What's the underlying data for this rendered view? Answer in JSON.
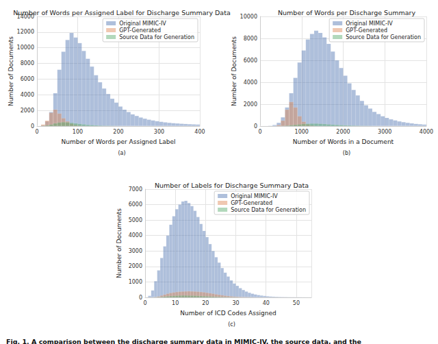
{
  "caption": "Fig. 1. A comparison between the discharge summary data in MIMIC-IV, the source data, and the",
  "chart_data": [
    {
      "type": "histogram",
      "title": "Number of Words per Assigned Label for Discharge Summary Data",
      "x_label": "Number of Words per Assigned Label",
      "y_label": "Number of Documents",
      "annotation": "(a)",
      "bins": [
        0,
        10,
        20,
        30,
        40,
        50,
        60,
        70,
        80,
        90,
        100,
        110,
        120,
        130,
        140,
        150,
        160,
        170,
        180,
        190,
        200,
        210,
        220,
        230,
        240,
        250,
        260,
        270,
        280,
        290,
        300,
        310,
        320,
        330,
        340,
        350,
        360,
        370,
        380,
        390,
        400
      ],
      "series": [
        {
          "name": "Original MIMIC-IV",
          "color": "#4c72b0",
          "values": [
            0,
            100,
            600,
            1800,
            4200,
            7200,
            9500,
            11000,
            11900,
            11300,
            10600,
            9600,
            8600,
            7600,
            6500,
            5600,
            4800,
            4100,
            3500,
            3000,
            2500,
            2100,
            1800,
            1500,
            1300,
            1100,
            950,
            820,
            720,
            630,
            550,
            480,
            420,
            380,
            340,
            300,
            270,
            240,
            220,
            200
          ]
        },
        {
          "name": "GPT-Generated",
          "color": "#dd8452",
          "values": [
            0,
            200,
            700,
            1700,
            2100,
            1600,
            1000,
            600,
            300,
            150,
            60,
            20,
            0,
            0,
            0,
            0,
            0,
            0,
            0,
            0,
            0,
            0,
            0,
            0,
            0,
            0,
            0,
            0,
            0,
            0,
            0,
            0,
            0,
            0,
            0,
            0,
            0,
            0,
            0,
            0
          ]
        },
        {
          "name": "Source Data for Generation",
          "color": "#55a868",
          "values": [
            0,
            20,
            80,
            200,
            350,
            450,
            500,
            480,
            420,
            350,
            280,
            220,
            160,
            120,
            90,
            60,
            40,
            30,
            20,
            10,
            0,
            0,
            0,
            0,
            0,
            0,
            0,
            0,
            0,
            0,
            0,
            0,
            0,
            0,
            0,
            0,
            0,
            0,
            0,
            0
          ]
        }
      ],
      "xlim": [
        0,
        400
      ],
      "xticks": [
        0,
        100,
        200,
        300,
        400
      ],
      "ylim": [
        0,
        14000
      ],
      "yticks": [
        0,
        2000,
        4000,
        6000,
        8000,
        10000,
        12000,
        14000
      ],
      "grid": true,
      "legend": "upper right"
    },
    {
      "type": "histogram",
      "title": "Number of Words per Discharge Summary",
      "x_label": "Number of Words in a Document",
      "y_label": "Number of Documents",
      "annotation": "(b)",
      "bins": [
        0,
        100,
        200,
        300,
        400,
        500,
        600,
        700,
        800,
        900,
        1000,
        1100,
        1200,
        1300,
        1400,
        1500,
        1600,
        1700,
        1800,
        1900,
        2000,
        2100,
        2200,
        2300,
        2400,
        2500,
        2600,
        2700,
        2800,
        2900,
        3000,
        3100,
        3200,
        3300,
        3400,
        3500,
        3600,
        3700,
        3800,
        3900,
        4000
      ],
      "series": [
        {
          "name": "Original MIMIC-IV",
          "color": "#4c72b0",
          "values": [
            0,
            0,
            20,
            100,
            300,
            800,
            1700,
            3000,
            4400,
            5800,
            6900,
            7900,
            8400,
            8700,
            8500,
            8100,
            7500,
            6800,
            6000,
            5300,
            4600,
            3900,
            3300,
            2800,
            2300,
            1900,
            1600,
            1300,
            1100,
            900,
            750,
            620,
            520,
            430,
            360,
            300,
            250,
            200,
            170,
            140
          ]
        },
        {
          "name": "GPT-Generated",
          "color": "#dd8452",
          "values": [
            0,
            0,
            0,
            0,
            100,
            500,
            1500,
            2200,
            1700,
            900,
            400,
            150,
            50,
            0,
            0,
            0,
            0,
            0,
            0,
            0,
            0,
            0,
            0,
            0,
            0,
            0,
            0,
            0,
            0,
            0,
            0,
            0,
            0,
            0,
            0,
            0,
            0,
            0,
            0,
            0
          ]
        },
        {
          "name": "Source Data for Generation",
          "color": "#55a868",
          "values": [
            0,
            0,
            0,
            0,
            0,
            10,
            40,
            80,
            120,
            160,
            200,
            220,
            230,
            230,
            210,
            190,
            160,
            130,
            110,
            90,
            70,
            55,
            40,
            30,
            20,
            15,
            10,
            0,
            0,
            0,
            0,
            0,
            0,
            0,
            0,
            0,
            0,
            0,
            0,
            0
          ]
        }
      ],
      "xlim": [
        0,
        4000
      ],
      "xticks": [
        0,
        1000,
        2000,
        3000,
        4000
      ],
      "ylim": [
        0,
        10000
      ],
      "yticks": [
        0,
        2000,
        4000,
        6000,
        8000,
        10000
      ],
      "grid": true,
      "legend": "upper right"
    },
    {
      "type": "histogram",
      "title": "Number of Labels for Discharge Summary Data",
      "x_label": "Number of ICD Codes Assigned",
      "y_label": "Number of Documents",
      "annotation": "(c)",
      "bins": [
        0,
        1,
        2,
        3,
        4,
        5,
        6,
        7,
        8,
        9,
        10,
        11,
        12,
        13,
        14,
        15,
        16,
        17,
        18,
        19,
        20,
        21,
        22,
        23,
        24,
        25,
        26,
        27,
        28,
        29,
        30,
        31,
        32,
        33,
        34,
        35,
        36,
        37,
        38,
        39,
        40,
        41,
        42,
        43,
        44,
        45,
        46,
        47,
        48,
        49,
        50,
        51,
        52,
        53,
        54,
        55
      ],
      "series": [
        {
          "name": "Original MIMIC-IV",
          "color": "#4c72b0",
          "values": [
            0,
            100,
            450,
            1050,
            1750,
            2550,
            3300,
            4000,
            4700,
            5250,
            5700,
            6000,
            6200,
            6250,
            6100,
            5900,
            5600,
            5200,
            4750,
            4300,
            3900,
            3450,
            3000,
            2600,
            2250,
            1900,
            1600,
            1350,
            1100,
            900,
            750,
            600,
            480,
            380,
            300,
            240,
            190,
            150,
            120,
            95,
            75,
            60,
            48,
            38,
            30,
            24,
            19,
            15,
            12,
            10,
            8,
            6,
            5,
            4,
            3
          ]
        },
        {
          "name": "GPT-Generated",
          "color": "#dd8452",
          "values": [
            0,
            0,
            0,
            20,
            60,
            120,
            180,
            240,
            290,
            320,
            350,
            370,
            380,
            390,
            400,
            390,
            380,
            370,
            350,
            330,
            300,
            270,
            240,
            200,
            170,
            140,
            110,
            90,
            70,
            50,
            40,
            30,
            20,
            15,
            10,
            5,
            0,
            0,
            0,
            0,
            0,
            0,
            0,
            0,
            0,
            0,
            0,
            0,
            0,
            0,
            0,
            0,
            0,
            0,
            0
          ]
        },
        {
          "name": "Source Data for Generation",
          "color": "#55a868",
          "values": [
            0,
            0,
            0,
            5,
            15,
            30,
            50,
            70,
            90,
            100,
            110,
            120,
            125,
            125,
            120,
            115,
            110,
            100,
            90,
            80,
            70,
            60,
            50,
            40,
            32,
            25,
            20,
            15,
            10,
            8,
            5,
            0,
            0,
            0,
            0,
            0,
            0,
            0,
            0,
            0,
            0,
            0,
            0,
            0,
            0,
            0,
            0,
            0,
            0,
            0,
            0,
            0,
            0,
            0,
            0
          ]
        }
      ],
      "xlim": [
        0,
        55
      ],
      "xticks": [
        0,
        10,
        20,
        30,
        40,
        50
      ],
      "ylim": [
        0,
        7000
      ],
      "yticks": [
        0,
        1000,
        2000,
        3000,
        4000,
        5000,
        6000,
        7000
      ],
      "grid": true,
      "legend": "upper right"
    }
  ]
}
